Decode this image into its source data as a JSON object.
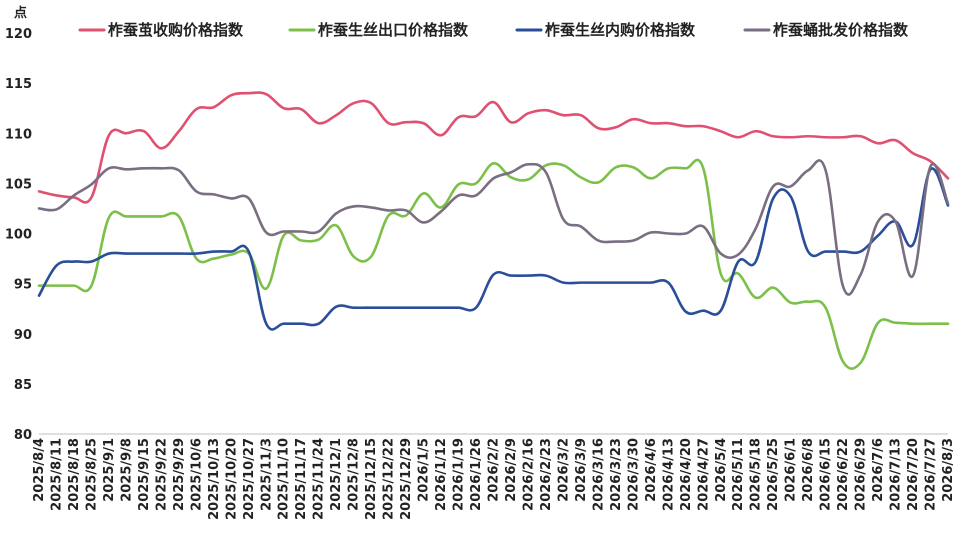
{
  "chart_data": {
    "type": "line",
    "y_unit": "点",
    "ylim": [
      80,
      120
    ],
    "y_ticks": [
      80,
      85,
      90,
      95,
      100,
      105,
      110,
      115,
      120
    ],
    "grid": false,
    "legend_position": "top",
    "x": [
      "2025/8/4",
      "2025/8/11",
      "2025/8/18",
      "2025/8/25",
      "2025/9/1",
      "2025/9/8",
      "2025/9/15",
      "2025/9/22",
      "2025/9/29",
      "2025/10/6",
      "2025/10/13",
      "2025/10/20",
      "2025/10/27",
      "2025/11/3",
      "2025/11/10",
      "2025/11/17",
      "2025/11/24",
      "2025/12/1",
      "2025/12/8",
      "2025/12/15",
      "2025/12/22",
      "2025/12/29",
      "2026/1/5",
      "2026/1/12",
      "2026/1/19",
      "2026/1/26",
      "2026/2/2",
      "2026/2/9",
      "2026/2/16",
      "2026/2/23",
      "2026/3/2",
      "2026/3/9",
      "2026/3/16",
      "2026/3/23",
      "2026/3/30",
      "2026/4/6",
      "2026/4/13",
      "2026/4/20",
      "2026/4/27",
      "2026/5/4",
      "2026/5/11",
      "2026/5/18",
      "2026/5/25",
      "2026/6/1",
      "2026/6/8",
      "2026/6/15",
      "2026/6/22",
      "2026/6/29",
      "2026/7/6",
      "2026/7/13",
      "2026/7/20",
      "2026/7/27",
      "2026/8/3"
    ],
    "series": [
      {
        "name": "柞蚕茧收购价格指数",
        "color": "#e05070",
        "values": [
          104.2,
          103.8,
          103.6,
          103.6,
          109.8,
          110.0,
          110.2,
          108.5,
          110.2,
          112.4,
          112.6,
          113.8,
          114.0,
          113.9,
          112.5,
          112.4,
          111.0,
          111.8,
          113.0,
          113.0,
          111.0,
          111.1,
          111.0,
          109.8,
          111.6,
          111.7,
          113.1,
          111.1,
          112.0,
          112.3,
          111.8,
          111.8,
          110.5,
          110.6,
          111.4,
          111.0,
          111.0,
          110.7,
          110.7,
          110.2,
          109.6,
          110.2,
          109.7,
          109.6,
          109.7,
          109.6,
          109.6,
          109.7,
          109.0,
          109.3,
          108.0,
          107.2,
          105.5
        ]
      },
      {
        "name": "柞蚕生丝出口价格指数",
        "color": "#7cc04a",
        "values": [
          94.8,
          94.8,
          94.8,
          94.8,
          101.6,
          101.7,
          101.7,
          101.7,
          101.7,
          97.5,
          97.5,
          97.9,
          98.0,
          94.5,
          99.8,
          99.3,
          99.4,
          100.8,
          97.7,
          97.7,
          101.8,
          101.8,
          104.0,
          102.6,
          104.9,
          105.0,
          107.0,
          105.6,
          105.4,
          106.8,
          106.8,
          105.6,
          105.1,
          106.6,
          106.6,
          105.5,
          106.5,
          106.5,
          106.5,
          96.0,
          96.0,
          93.6,
          94.6,
          93.1,
          93.2,
          92.6,
          87.2,
          87.1,
          91.1,
          91.1,
          91.0,
          91.0,
          91.0
        ]
      },
      {
        "name": "柞蚕生丝内购价格指数",
        "color": "#2a4e9a",
        "values": [
          93.8,
          96.8,
          97.2,
          97.2,
          98.0,
          98.0,
          98.0,
          98.0,
          98.0,
          98.0,
          98.2,
          98.2,
          98.2,
          91.0,
          91.0,
          91.0,
          91.0,
          92.7,
          92.6,
          92.6,
          92.6,
          92.6,
          92.6,
          92.6,
          92.6,
          92.6,
          95.9,
          95.8,
          95.8,
          95.8,
          95.1,
          95.1,
          95.1,
          95.1,
          95.1,
          95.1,
          95.1,
          92.2,
          92.3,
          92.3,
          97.2,
          97.2,
          103.5,
          103.7,
          98.2,
          98.2,
          98.2,
          98.2,
          99.8,
          101.2,
          98.9,
          106.4,
          102.8
        ]
      },
      {
        "name": "柞蚕蛹批发价格指数",
        "color": "#7a6e82",
        "values": [
          102.5,
          102.4,
          103.8,
          104.9,
          106.5,
          106.4,
          106.5,
          106.5,
          106.3,
          104.2,
          103.9,
          103.5,
          103.5,
          100.1,
          100.2,
          100.2,
          100.2,
          102.0,
          102.7,
          102.6,
          102.3,
          102.3,
          101.1,
          102.2,
          103.8,
          103.8,
          105.5,
          106.1,
          106.9,
          106.1,
          101.4,
          100.7,
          99.3,
          99.2,
          99.3,
          100.1,
          100.0,
          100.0,
          100.7,
          98.0,
          97.9,
          100.5,
          104.7,
          104.7,
          106.3,
          106.3,
          94.7,
          95.9,
          101.2,
          101.2,
          95.8,
          106.7,
          103.0
        ]
      }
    ]
  }
}
